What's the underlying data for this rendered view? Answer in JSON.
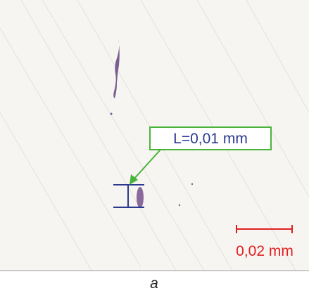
{
  "annotations": {
    "measurement_label": "L=0,01 mm",
    "scale_bar_label": "0,02 mm",
    "caption": "a"
  }
}
